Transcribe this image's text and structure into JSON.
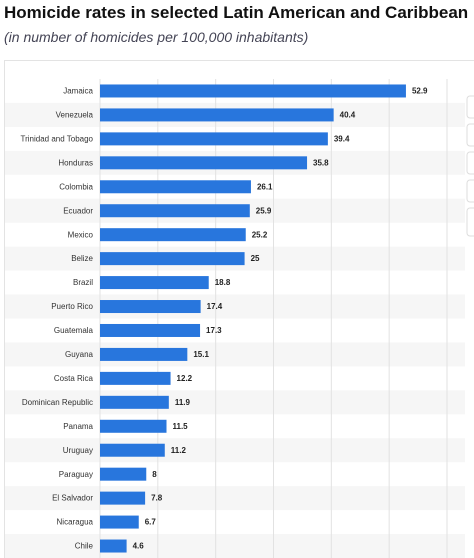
{
  "chart_data": {
    "type": "bar",
    "orientation": "horizontal",
    "title": "Homicide rates in selected Latin American and Caribbean",
    "subtitle": "(in number of homicides per 100,000 inhabitants)",
    "categories": [
      "Jamaica",
      "Venezuela",
      "Trinidad and Tobago",
      "Honduras",
      "Colombia",
      "Ecuador",
      "Mexico",
      "Belize",
      "Brazil",
      "Puerto Rico",
      "Guatemala",
      "Guyana",
      "Costa Rica",
      "Dominican Republic",
      "Panama",
      "Uruguay",
      "Paraguay",
      "El Salvador",
      "Nicaragua",
      "Chile"
    ],
    "values": [
      52.9,
      40.4,
      39.4,
      35.8,
      26.1,
      25.9,
      25.2,
      25,
      18.8,
      17.4,
      17.3,
      15.1,
      12.2,
      11.9,
      11.5,
      11.2,
      8,
      7.8,
      6.7,
      4.6
    ],
    "color": "#2876dd",
    "xlim": [
      0,
      60
    ],
    "xticks": [
      0,
      10,
      20,
      30,
      40,
      50,
      60
    ],
    "grid": true
  }
}
